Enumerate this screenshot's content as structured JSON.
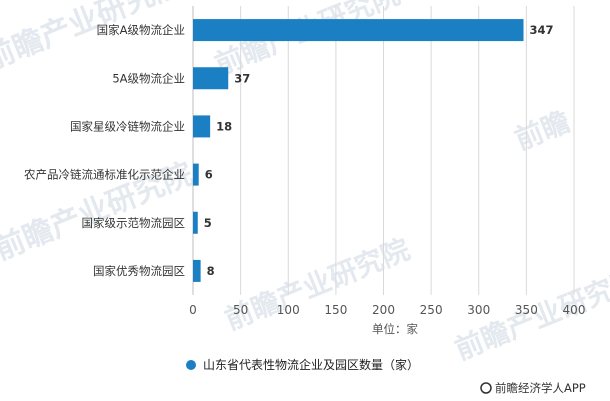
{
  "chart_data": {
    "type": "bar",
    "orientation": "horizontal",
    "categories": [
      "国家A级物流企业",
      "5A级物流企业",
      "国家星级冷链物流企业",
      "农产品冷链流通标准化示范企业",
      "国家级示范物流园区",
      "国家优秀物流园区"
    ],
    "series": [
      {
        "name": "山东省代表性物流企业及园区数量（家）",
        "values": [
          347,
          37,
          18,
          6,
          5,
          8
        ]
      }
    ],
    "data_labels": [
      "347",
      "37",
      "18",
      "6",
      "5",
      "8"
    ],
    "xlim": [
      0,
      400
    ],
    "xticks": [
      "0",
      "50",
      "100",
      "150",
      "200",
      "250",
      "300",
      "350",
      "400"
    ],
    "xlabel": "单位：家",
    "grid": true,
    "legend_position": "bottom",
    "bar_color": "#1b7fc4"
  },
  "credit": "前瞻经济学人APP"
}
